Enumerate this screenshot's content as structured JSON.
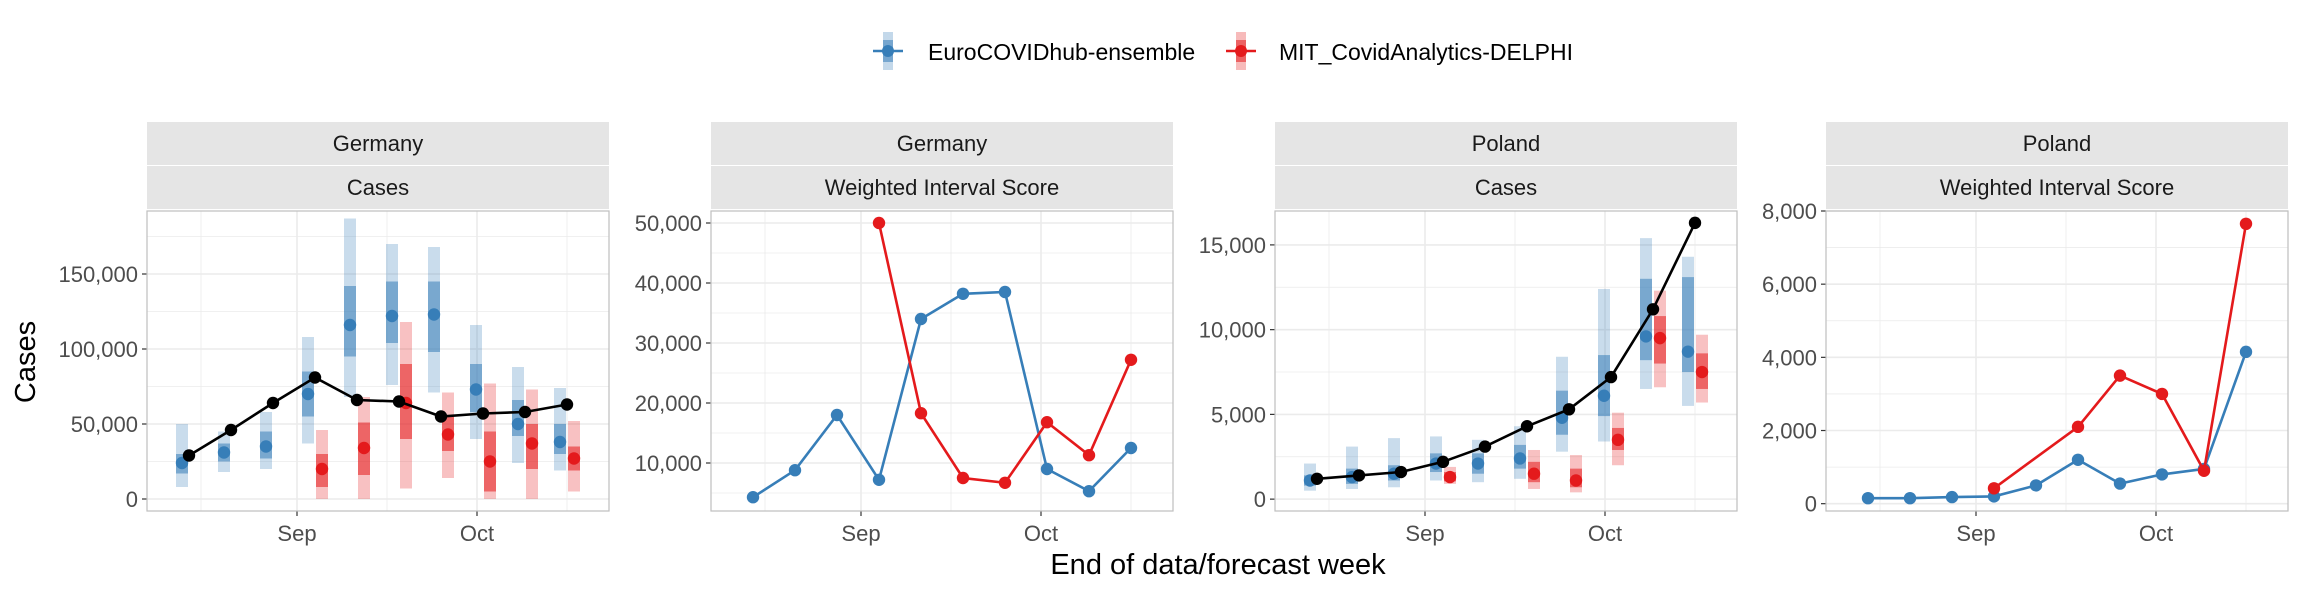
{
  "legend": [
    {
      "label": "EuroCOVIDhub-ensemble",
      "color": "#377EB8"
    },
    {
      "label": "MIT_CovidAnalytics-DELPHI",
      "color": "#E41A1C"
    }
  ],
  "y_title": "Cases",
  "x_title": "End of data/forecast week",
  "colors": {
    "observed": "#000000",
    "ensemble": "#377EB8",
    "delphi": "#E41A1C",
    "strip": "#E5E5E5",
    "grid": "#EBEBEB"
  },
  "chart_data": [
    {
      "type": "line",
      "strip": [
        "Germany",
        "Cases"
      ],
      "ylim": [
        -8000,
        192000
      ],
      "yticks": [
        0,
        50000,
        100000,
        150000
      ],
      "ytick_labels": [
        "0",
        "50,000",
        "100,000",
        "150,000"
      ],
      "xticks": [
        "2021-09-01",
        "2021-10-01"
      ],
      "xtick_labels": [
        "Sep",
        "Oct"
      ],
      "observed": [
        {
          "x": "2021-08-14",
          "y": 29000
        },
        {
          "x": "2021-08-21",
          "y": 46000
        },
        {
          "x": "2021-08-28",
          "y": 64000
        },
        {
          "x": "2021-09-04",
          "y": 81000
        },
        {
          "x": "2021-09-11",
          "y": 66000
        },
        {
          "x": "2021-09-18",
          "y": 65000
        },
        {
          "x": "2021-09-25",
          "y": 55000
        },
        {
          "x": "2021-10-02",
          "y": 57000
        },
        {
          "x": "2021-10-09",
          "y": 58000
        },
        {
          "x": "2021-10-16",
          "y": 63000
        }
      ],
      "forecasts": [
        {
          "model": "ensemble",
          "points": [
            {
              "x": "2021-08-14",
              "y": 24000,
              "i50": [
                17000,
                30000
              ],
              "i90": [
                8000,
                50000
              ]
            },
            {
              "x": "2021-08-21",
              "y": 31000,
              "i50": [
                25000,
                37000
              ],
              "i90": [
                18000,
                45000
              ]
            },
            {
              "x": "2021-08-28",
              "y": 35000,
              "i50": [
                27000,
                45000
              ],
              "i90": [
                20000,
                58000
              ]
            },
            {
              "x": "2021-09-04",
              "y": 70000,
              "i50": [
                55000,
                85000
              ],
              "i90": [
                37000,
                108000
              ]
            },
            {
              "x": "2021-09-11",
              "y": 116000,
              "i50": [
                95000,
                142000
              ],
              "i90": [
                68000,
                187000
              ]
            },
            {
              "x": "2021-09-18",
              "y": 122000,
              "i50": [
                104000,
                145000
              ],
              "i90": [
                76000,
                170000
              ]
            },
            {
              "x": "2021-09-25",
              "y": 123000,
              "i50": [
                98000,
                145000
              ],
              "i90": [
                71000,
                168000
              ]
            },
            {
              "x": "2021-10-02",
              "y": 73000,
              "i50": [
                58000,
                90000
              ],
              "i90": [
                40000,
                116000
              ]
            },
            {
              "x": "2021-10-09",
              "y": 50000,
              "i50": [
                42000,
                66000
              ],
              "i90": [
                24000,
                88000
              ]
            },
            {
              "x": "2021-10-16",
              "y": 38000,
              "i50": [
                30000,
                50000
              ],
              "i90": [
                19000,
                74000
              ]
            }
          ]
        },
        {
          "model": "delphi",
          "points": [
            {
              "x": "2021-09-04",
              "y": 20000,
              "i50": [
                8000,
                30000
              ],
              "i90": [
                0,
                46000
              ]
            },
            {
              "x": "2021-09-11",
              "y": 34000,
              "i50": [
                16000,
                51000
              ],
              "i90": [
                0,
                68000
              ]
            },
            {
              "x": "2021-09-18",
              "y": 64000,
              "i50": [
                40000,
                90000
              ],
              "i90": [
                7000,
                118000
              ]
            },
            {
              "x": "2021-09-25",
              "y": 43000,
              "i50": [
                32000,
                56000
              ],
              "i90": [
                14000,
                71000
              ]
            },
            {
              "x": "2021-10-02",
              "y": 25000,
              "i50": [
                5000,
                45000
              ],
              "i90": [
                0,
                77000
              ]
            },
            {
              "x": "2021-10-09",
              "y": 37000,
              "i50": [
                20000,
                50000
              ],
              "i90": [
                0,
                73000
              ]
            },
            {
              "x": "2021-10-16",
              "y": 27000,
              "i50": [
                19000,
                35000
              ],
              "i90": [
                5000,
                52000
              ]
            }
          ]
        }
      ]
    },
    {
      "type": "line",
      "strip": [
        "Germany",
        "Weighted Interval Score"
      ],
      "ylim": [
        2000,
        52000
      ],
      "yticks": [
        10000,
        20000,
        30000,
        40000,
        50000
      ],
      "ytick_labels": [
        "10,000",
        "20,000",
        "30,000",
        "40,000",
        "50,000"
      ],
      "xticks": [
        "2021-09-01",
        "2021-10-01"
      ],
      "xtick_labels": [
        "Sep",
        "Oct"
      ],
      "series": [
        {
          "model": "ensemble",
          "points": [
            {
              "x": "2021-08-14",
              "y": 4300
            },
            {
              "x": "2021-08-21",
              "y": 8800
            },
            {
              "x": "2021-08-28",
              "y": 18000
            },
            {
              "x": "2021-09-04",
              "y": 7200
            },
            {
              "x": "2021-09-11",
              "y": 34000
            },
            {
              "x": "2021-09-18",
              "y": 38200
            },
            {
              "x": "2021-09-25",
              "y": 38500
            },
            {
              "x": "2021-10-02",
              "y": 9000
            },
            {
              "x": "2021-10-09",
              "y": 5300
            },
            {
              "x": "2021-10-16",
              "y": 12500
            }
          ]
        },
        {
          "model": "delphi",
          "points": [
            {
              "x": "2021-09-04",
              "y": 50000
            },
            {
              "x": "2021-09-11",
              "y": 18300
            },
            {
              "x": "2021-09-18",
              "y": 7500
            },
            {
              "x": "2021-09-25",
              "y": 6700
            },
            {
              "x": "2021-10-02",
              "y": 16800
            },
            {
              "x": "2021-10-09",
              "y": 11300
            },
            {
              "x": "2021-10-16",
              "y": 27200
            }
          ]
        }
      ]
    },
    {
      "type": "line",
      "strip": [
        "Poland",
        "Cases"
      ],
      "ylim": [
        -700,
        17000
      ],
      "yticks": [
        0,
        5000,
        10000,
        15000
      ],
      "ytick_labels": [
        "0",
        "5,000",
        "10,000",
        "15,000"
      ],
      "xticks": [
        "2021-09-01",
        "2021-10-01"
      ],
      "xtick_labels": [
        "Sep",
        "Oct"
      ],
      "observed": [
        {
          "x": "2021-08-14",
          "y": 1200
        },
        {
          "x": "2021-08-21",
          "y": 1400
        },
        {
          "x": "2021-08-28",
          "y": 1600
        },
        {
          "x": "2021-09-04",
          "y": 2200
        },
        {
          "x": "2021-09-11",
          "y": 3100
        },
        {
          "x": "2021-09-18",
          "y": 4300
        },
        {
          "x": "2021-09-25",
          "y": 5300
        },
        {
          "x": "2021-10-02",
          "y": 7200
        },
        {
          "x": "2021-10-09",
          "y": 11200
        },
        {
          "x": "2021-10-16",
          "y": 16300
        }
      ],
      "forecasts": [
        {
          "model": "ensemble",
          "points": [
            {
              "x": "2021-08-14",
              "y": 1100,
              "i50": [
                800,
                1400
              ],
              "i90": [
                500,
                2100
              ]
            },
            {
              "x": "2021-08-21",
              "y": 1300,
              "i50": [
                900,
                1800
              ],
              "i90": [
                600,
                3100
              ]
            },
            {
              "x": "2021-08-28",
              "y": 1500,
              "i50": [
                1100,
                2000
              ],
              "i90": [
                700,
                3600
              ]
            },
            {
              "x": "2021-09-04",
              "y": 2100,
              "i50": [
                1600,
                2700
              ],
              "i90": [
                1100,
                3700
              ]
            },
            {
              "x": "2021-09-11",
              "y": 2100,
              "i50": [
                1500,
                2700
              ],
              "i90": [
                1000,
                3500
              ]
            },
            {
              "x": "2021-09-18",
              "y": 2400,
              "i50": [
                1800,
                3200
              ],
              "i90": [
                1200,
                4300
              ]
            },
            {
              "x": "2021-09-25",
              "y": 4800,
              "i50": [
                3800,
                6400
              ],
              "i90": [
                2800,
                8400
              ]
            },
            {
              "x": "2021-10-02",
              "y": 6100,
              "i50": [
                4900,
                8500
              ],
              "i90": [
                3400,
                12400
              ]
            },
            {
              "x": "2021-10-09",
              "y": 9600,
              "i50": [
                8200,
                13000
              ],
              "i90": [
                6500,
                15400
              ]
            },
            {
              "x": "2021-10-16",
              "y": 8700,
              "i50": [
                7500,
                13100
              ],
              "i90": [
                5500,
                14300
              ]
            }
          ]
        },
        {
          "model": "delphi",
          "points": [
            {
              "x": "2021-09-04",
              "y": 1300,
              "i50": [
                1050,
                1600
              ],
              "i90": [
                900,
                1900
              ]
            },
            {
              "x": "2021-09-18",
              "y": 1500,
              "i50": [
                1000,
                2200
              ],
              "i90": [
                600,
                2900
              ]
            },
            {
              "x": "2021-09-25",
              "y": 1100,
              "i50": [
                700,
                1800
              ],
              "i90": [
                400,
                2600
              ]
            },
            {
              "x": "2021-10-02",
              "y": 3500,
              "i50": [
                2900,
                4200
              ],
              "i90": [
                2000,
                5100
              ]
            },
            {
              "x": "2021-10-09",
              "y": 9500,
              "i50": [
                8000,
                10800
              ],
              "i90": [
                6600,
                12300
              ]
            },
            {
              "x": "2021-10-16",
              "y": 7500,
              "i50": [
                6500,
                8600
              ],
              "i90": [
                5700,
                9700
              ]
            }
          ]
        }
      ]
    },
    {
      "type": "line",
      "strip": [
        "Poland",
        "Weighted Interval Score"
      ],
      "ylim": [
        -200,
        8000
      ],
      "yticks": [
        0,
        2000,
        4000,
        6000,
        8000
      ],
      "ytick_labels": [
        "0",
        "2,000",
        "4,000",
        "6,000",
        "8,000"
      ],
      "xticks": [
        "2021-09-01",
        "2021-10-01"
      ],
      "xtick_labels": [
        "Sep",
        "Oct"
      ],
      "series": [
        {
          "model": "ensemble",
          "points": [
            {
              "x": "2021-08-14",
              "y": 150
            },
            {
              "x": "2021-08-21",
              "y": 150
            },
            {
              "x": "2021-08-28",
              "y": 180
            },
            {
              "x": "2021-09-04",
              "y": 200
            },
            {
              "x": "2021-09-11",
              "y": 500
            },
            {
              "x": "2021-09-18",
              "y": 1200
            },
            {
              "x": "2021-09-25",
              "y": 550
            },
            {
              "x": "2021-10-02",
              "y": 800
            },
            {
              "x": "2021-10-09",
              "y": 950
            },
            {
              "x": "2021-10-16",
              "y": 4150
            }
          ]
        },
        {
          "model": "delphi",
          "points": [
            {
              "x": "2021-09-04",
              "y": 420
            },
            {
              "x": "2021-09-18",
              "y": 2100
            },
            {
              "x": "2021-09-25",
              "y": 3500
            },
            {
              "x": "2021-10-02",
              "y": 3000
            },
            {
              "x": "2021-10-09",
              "y": 900
            },
            {
              "x": "2021-10-16",
              "y": 7650
            }
          ]
        }
      ]
    }
  ]
}
